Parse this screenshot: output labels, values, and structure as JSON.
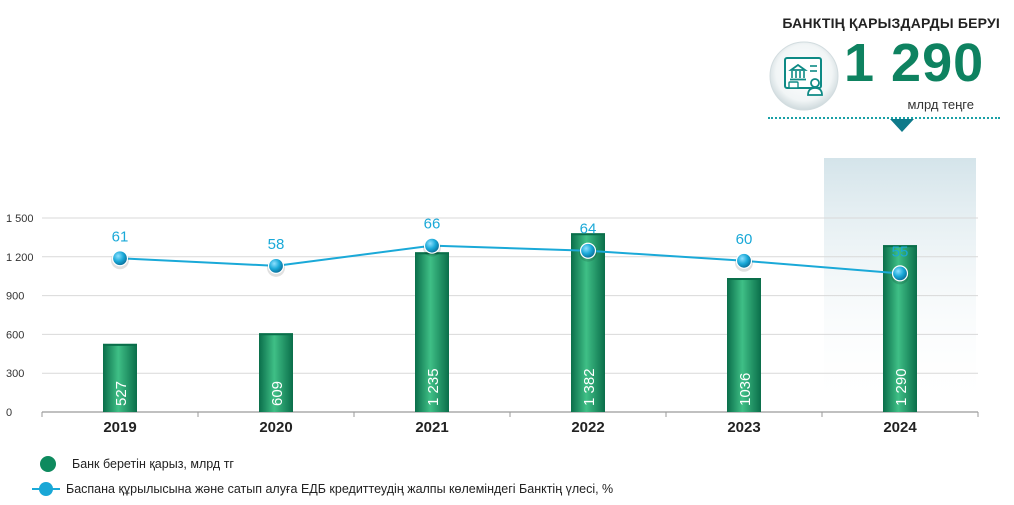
{
  "kpi": {
    "title": "БАНКТІҢ ҚАРЫЗДАРДЫ БЕРУІ",
    "value": "1 290",
    "unit": "млрд теңге",
    "icon": "bank-document-icon"
  },
  "colors": {
    "bar_dark": "#0a6e4a",
    "bar_light": "#3fbf86",
    "line": "#1aa9d8",
    "label": "#1aa9d8",
    "brand": "#0e8260",
    "highlight": "#d4e4ea"
  },
  "chart_data": {
    "type": "bar",
    "categories": [
      "2019",
      "2020",
      "2021",
      "2022",
      "2023",
      "2024"
    ],
    "series": [
      {
        "name": "Банк беретін қарыз, млрд тг",
        "type": "bar",
        "values": [
          527,
          609,
          1235,
          1382,
          1036,
          1290
        ],
        "labels": [
          "527",
          "609",
          "1 235",
          "1 382",
          "1036",
          "1 290"
        ]
      },
      {
        "name": "Баспана құрылысына және сатып алуға ЕДБ кредиттеудің жалпы көлеміндегі Банктің үлесі, %",
        "type": "line",
        "values": [
          61,
          58,
          66,
          64,
          60,
          55
        ]
      }
    ],
    "y_ticks": [
      0,
      300,
      600,
      900,
      1200,
      1500
    ],
    "y_tick_labels": [
      "0",
      "300",
      "600",
      "900",
      "1 200",
      "1 500"
    ],
    "ylim": [
      0,
      1500
    ],
    "line_ylim": [
      0,
      100
    ],
    "highlight_category": "2024",
    "grid": true,
    "legend": "bottom-left"
  }
}
